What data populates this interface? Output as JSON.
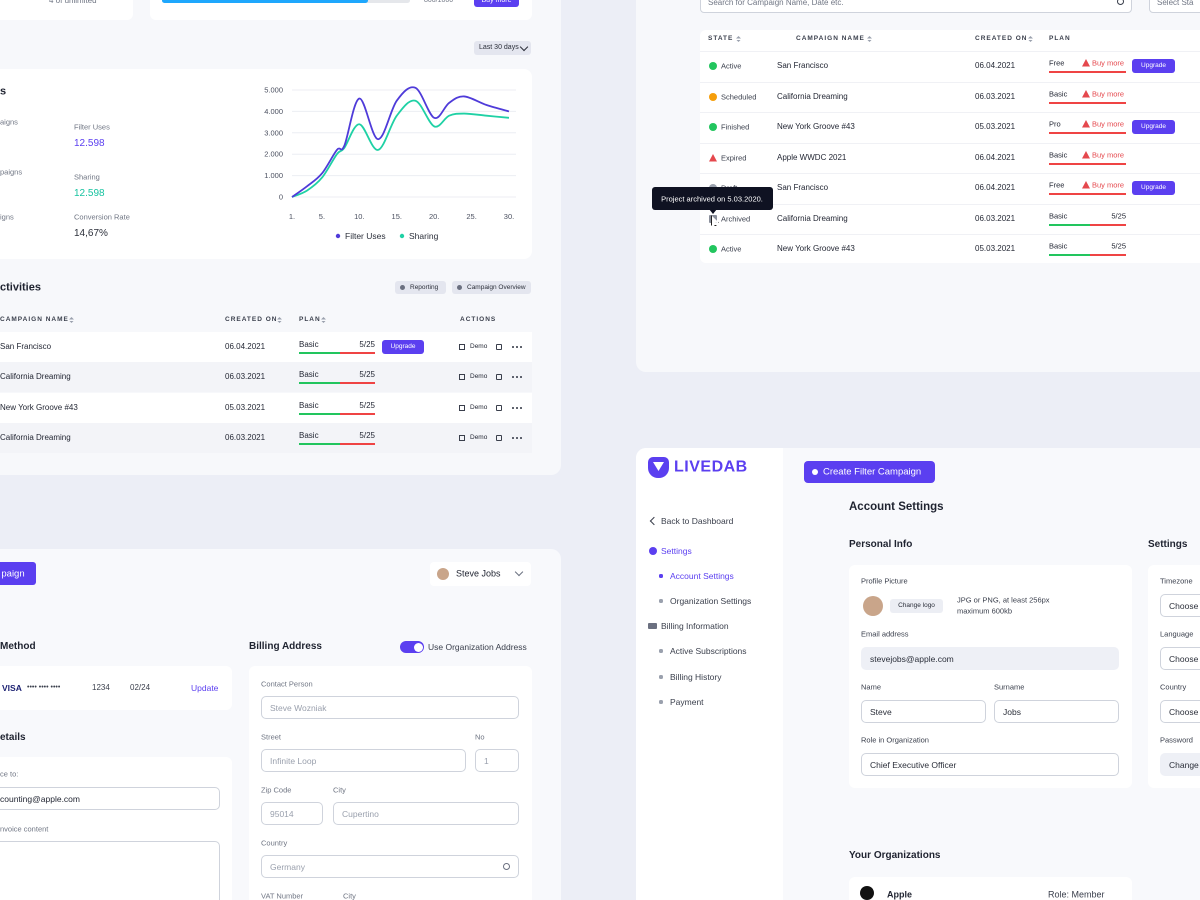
{
  "usage": {
    "limit_text": "4 of unlimited",
    "progress_text": "800/1000",
    "buy_more": "Buy more"
  },
  "period": "Last 30 days",
  "stats": {
    "title": "s",
    "rows": [
      {
        "left": "aigns",
        "label": "Filter Uses",
        "value": "12.598"
      },
      {
        "left": "paigns",
        "label": "Sharing",
        "value": "12.598"
      },
      {
        "left": "igns",
        "label": "Conversion Rate",
        "value": "14,67%"
      }
    ]
  },
  "chart_data": {
    "type": "line",
    "x": [
      1,
      3,
      5,
      7,
      8,
      10,
      12.5,
      15,
      17.5,
      20,
      22,
      24,
      27,
      30
    ],
    "series": [
      {
        "name": "Filter Uses",
        "color": "#4f3bd9",
        "values": [
          0,
          500,
          1100,
          2200,
          2400,
          4600,
          2700,
          4500,
          5100,
          3700,
          4400,
          4700,
          4300,
          4000
        ]
      },
      {
        "name": "Sharing",
        "color": "#1fd1a5",
        "values": [
          0,
          300,
          900,
          2000,
          2300,
          3400,
          2200,
          3800,
          4500,
          3300,
          3800,
          3900,
          3800,
          3700
        ]
      }
    ],
    "xlim": [
      1,
      30
    ],
    "xticks": [
      {
        "value": 1,
        "label": "1."
      },
      {
        "value": 5,
        "label": "5."
      },
      {
        "value": 10,
        "label": "10."
      },
      {
        "value": 15,
        "label": "15."
      },
      {
        "value": 20,
        "label": "20."
      },
      {
        "value": 25,
        "label": "25."
      },
      {
        "value": 30,
        "label": "30."
      }
    ],
    "ylim": [
      0,
      5000
    ],
    "yticks": [
      0,
      {
        "value": 1000,
        "label": "1.000"
      },
      {
        "value": 2000,
        "label": "2.000"
      },
      {
        "value": 3000,
        "label": "3.000"
      },
      {
        "value": 4000,
        "label": "4.000"
      },
      {
        "value": 5000,
        "label": "5.000"
      }
    ],
    "grid": true
  },
  "activities": {
    "title": "ctivities",
    "buttons": [
      "Reporting",
      "Campaign Overview"
    ],
    "columns": [
      "CAMPAIGN NAME",
      "CREATED ON",
      "PLAN",
      "ACTIONS"
    ],
    "rows": [
      {
        "name": "San Francisco",
        "created": "06.04.2021",
        "plan": "Basic",
        "usage": "5/25",
        "upgrade": "Upgrade",
        "demo": "Demo"
      },
      {
        "name": "California Dreaming",
        "created": "06.03.2021",
        "plan": "Basic",
        "usage": "5/25",
        "demo": "Demo"
      },
      {
        "name": "New York Groove #43",
        "created": "05.03.2021",
        "plan": "Basic",
        "usage": "5/25",
        "demo": "Demo"
      },
      {
        "name": "California Dreaming",
        "created": "06.03.2021",
        "plan": "Basic",
        "usage": "5/25",
        "demo": "Demo"
      }
    ]
  },
  "campaigns": {
    "search": "Search for Campaign Name, Date etc.",
    "select": "Select Sta",
    "columns": [
      "STATE",
      "CAMPAIGN NAME",
      "CREATED ON",
      "PLAN"
    ],
    "rows": [
      {
        "state": "Active",
        "name": "San Francisco",
        "created": "06.04.2021",
        "plan": "Free",
        "buy_more": "Buy more",
        "upgrade": "Upgrade"
      },
      {
        "state": "Scheduled",
        "name": "California Dreaming",
        "created": "06.03.2021",
        "plan": "Basic",
        "buy_more": "Buy more"
      },
      {
        "state": "Finished",
        "name": "New York Groove #43",
        "created": "05.03.2021",
        "plan": "Pro",
        "buy_more": "Buy more",
        "upgrade": "Upgrade"
      },
      {
        "state": "Expired",
        "name": "Apple WWDC 2021",
        "created": "06.04.2021",
        "plan": "Basic",
        "buy_more": "Buy more"
      },
      {
        "state": "Draft",
        "name": "San Francisco",
        "created": "06.04.2021",
        "plan": "Free",
        "buy_more": "Buy more",
        "upgrade": "Upgrade"
      },
      {
        "state": "Archived",
        "name": "California Dreaming",
        "created": "06.03.2021",
        "plan": "Basic",
        "usage": "5/25"
      },
      {
        "state": "Active",
        "name": "New York Groove #43",
        "created": "05.03.2021",
        "plan": "Basic",
        "usage": "5/25"
      }
    ],
    "tooltip": "Project archived on 5.03.2020."
  },
  "billing": {
    "create_button": "paign",
    "user": "Steve Jobs",
    "method_title": "Method",
    "card": {
      "brand": "VISA",
      "mask": "•••• •••• ••••",
      "last4": "1234",
      "expiry": "02/24",
      "action": "Update"
    },
    "invoice_title": "etails",
    "invoice_to_label": "ce to:",
    "invoice_to_value": "counting@apple.com",
    "invoice_content_label": "nvoice content",
    "address_title": "Billing Address",
    "toggle_label": "Use Organization Address",
    "fields": {
      "contact": {
        "label": "Contact Person",
        "value": "Steve Wozniak"
      },
      "street": {
        "label": "Street",
        "value": "Infinite Loop"
      },
      "no": {
        "label": "No",
        "value": "1"
      },
      "zip": {
        "label": "Zip Code",
        "value": "95014"
      },
      "city": {
        "label": "City",
        "value": "Cupertino"
      },
      "country": {
        "label": "Country",
        "value": "Germany"
      },
      "vat": {
        "label": "VAT Number"
      },
      "city2": {
        "label": "City"
      }
    }
  },
  "settings": {
    "logo": "LIVEDAB",
    "create_button": "Create Filter Campaign",
    "nav": [
      {
        "label": "Back to Dashboard"
      },
      {
        "label": "Settings"
      },
      {
        "label": "Account Settings"
      },
      {
        "label": "Organization Settings"
      },
      {
        "label": "Billing Information"
      },
      {
        "label": "Active Subscriptions"
      },
      {
        "label": "Billing History"
      },
      {
        "label": "Payment"
      }
    ],
    "title": "Account Settings",
    "personal_title": "Personal Info",
    "side_title": "Settings",
    "profile_label": "Profile Picture",
    "change_logo": "Change logo",
    "hint": [
      "JPG or PNG, at least 256px",
      "maximum 600kb"
    ],
    "email": {
      "label": "Email address",
      "value": "stevejobs@apple.com"
    },
    "name": {
      "label": "Name",
      "value": "Steve"
    },
    "surname": {
      "label": "Surname",
      "value": "Jobs"
    },
    "role": {
      "label": "Role in Organization",
      "value": "Chief Executive Officer"
    },
    "side_fields": [
      {
        "label": "Timezone",
        "value": "Choose"
      },
      {
        "label": "Language",
        "value": "Choose"
      },
      {
        "label": "Country",
        "value": "Choose"
      },
      {
        "label": "Password",
        "value": "Change"
      }
    ],
    "orgs_title": "Your Organizations",
    "org": {
      "name": "Apple",
      "role": "Role: Member"
    }
  }
}
